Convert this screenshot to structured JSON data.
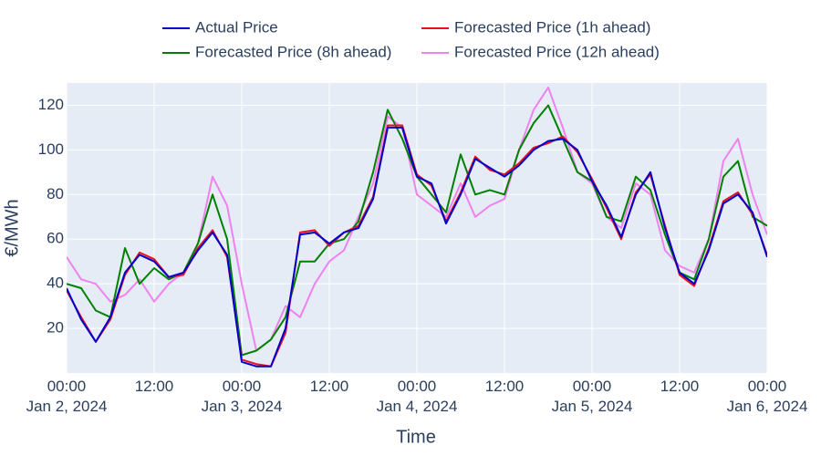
{
  "chart_data": {
    "type": "line",
    "xlabel": "Time",
    "ylabel": "€/MWh",
    "x": [
      "2024-01-02T00:00",
      "2024-01-02T02:00",
      "2024-01-02T04:00",
      "2024-01-02T06:00",
      "2024-01-02T08:00",
      "2024-01-02T10:00",
      "2024-01-02T12:00",
      "2024-01-02T14:00",
      "2024-01-02T16:00",
      "2024-01-02T18:00",
      "2024-01-02T20:00",
      "2024-01-02T22:00",
      "2024-01-03T00:00",
      "2024-01-03T02:00",
      "2024-01-03T04:00",
      "2024-01-03T06:00",
      "2024-01-03T08:00",
      "2024-01-03T10:00",
      "2024-01-03T12:00",
      "2024-01-03T14:00",
      "2024-01-03T16:00",
      "2024-01-03T18:00",
      "2024-01-03T20:00",
      "2024-01-03T22:00",
      "2024-01-04T00:00",
      "2024-01-04T02:00",
      "2024-01-04T04:00",
      "2024-01-04T06:00",
      "2024-01-04T08:00",
      "2024-01-04T10:00",
      "2024-01-04T12:00",
      "2024-01-04T14:00",
      "2024-01-04T16:00",
      "2024-01-04T18:00",
      "2024-01-04T20:00",
      "2024-01-04T22:00",
      "2024-01-05T00:00",
      "2024-01-05T02:00",
      "2024-01-05T04:00",
      "2024-01-05T06:00",
      "2024-01-05T08:00",
      "2024-01-05T10:00",
      "2024-01-05T12:00",
      "2024-01-05T14:00",
      "2024-01-05T16:00",
      "2024-01-05T18:00",
      "2024-01-05T20:00",
      "2024-01-05T22:00",
      "2024-01-06T00:00"
    ],
    "series": [
      {
        "name": "Actual Price",
        "color": "#0000cd",
        "values": [
          38,
          24,
          14,
          25,
          45,
          53,
          50,
          43,
          45,
          55,
          63,
          53,
          5,
          3,
          3,
          20,
          62,
          63,
          58,
          63,
          65,
          78,
          110,
          110,
          88,
          85,
          67,
          80,
          96,
          92,
          88,
          93,
          100,
          104,
          105,
          100,
          86,
          75,
          61,
          80,
          90,
          65,
          45,
          40,
          55,
          76,
          80,
          72,
          52
        ]
      },
      {
        "name": "Forecasted Price (1h ahead)",
        "color": "#e8101b",
        "values": [
          37,
          25,
          14,
          24,
          44,
          54,
          51,
          43,
          44,
          56,
          64,
          52,
          6,
          4,
          3,
          18,
          63,
          64,
          57,
          63,
          66,
          79,
          111,
          111,
          89,
          84,
          68,
          81,
          97,
          91,
          89,
          94,
          101,
          103,
          106,
          99,
          87,
          74,
          60,
          81,
          89,
          66,
          44,
          39,
          56,
          77,
          81,
          71,
          53
        ]
      },
      {
        "name": "Forecasted Price (8h ahead)",
        "color": "#008000",
        "values": [
          40,
          38,
          28,
          25,
          56,
          40,
          47,
          42,
          45,
          58,
          80,
          60,
          8,
          10,
          15,
          25,
          50,
          50,
          58,
          60,
          68,
          90,
          118,
          105,
          88,
          80,
          72,
          98,
          80,
          82,
          80,
          100,
          112,
          120,
          105,
          90,
          86,
          70,
          68,
          88,
          82,
          62,
          45,
          42,
          60,
          88,
          95,
          70,
          66
        ]
      },
      {
        "name": "Forecasted Price (12h ahead)",
        "color": "#ee82ee",
        "values": [
          52,
          42,
          40,
          32,
          35,
          42,
          32,
          40,
          45,
          58,
          88,
          75,
          40,
          10,
          15,
          30,
          25,
          40,
          50,
          55,
          70,
          85,
          115,
          110,
          80,
          75,
          70,
          85,
          70,
          75,
          78,
          100,
          118,
          128,
          110,
          90,
          85,
          70,
          65,
          85,
          80,
          55,
          48,
          45,
          60,
          95,
          105,
          80,
          62
        ]
      }
    ],
    "xlim": [
      "2024-01-02T00:00",
      "2024-01-06T00:00"
    ],
    "xticks": [
      {
        "value": "2024-01-02T00:00",
        "label": "00:00\nJan 2, 2024"
      },
      {
        "value": "2024-01-02T12:00",
        "label": "12:00"
      },
      {
        "value": "2024-01-03T00:00",
        "label": "00:00\nJan 3, 2024"
      },
      {
        "value": "2024-01-03T12:00",
        "label": "12:00"
      },
      {
        "value": "2024-01-04T00:00",
        "label": "00:00\nJan 4, 2024"
      },
      {
        "value": "2024-01-04T12:00",
        "label": "12:00"
      },
      {
        "value": "2024-01-05T00:00",
        "label": "00:00\nJan 5, 2024"
      },
      {
        "value": "2024-01-05T12:00",
        "label": "12:00"
      },
      {
        "value": "2024-01-06T00:00",
        "label": "00:00\nJan 6, 2024"
      }
    ],
    "ylim": [
      0,
      130
    ],
    "yticks": [
      20,
      40,
      60,
      80,
      100,
      120
    ],
    "grid": true
  }
}
